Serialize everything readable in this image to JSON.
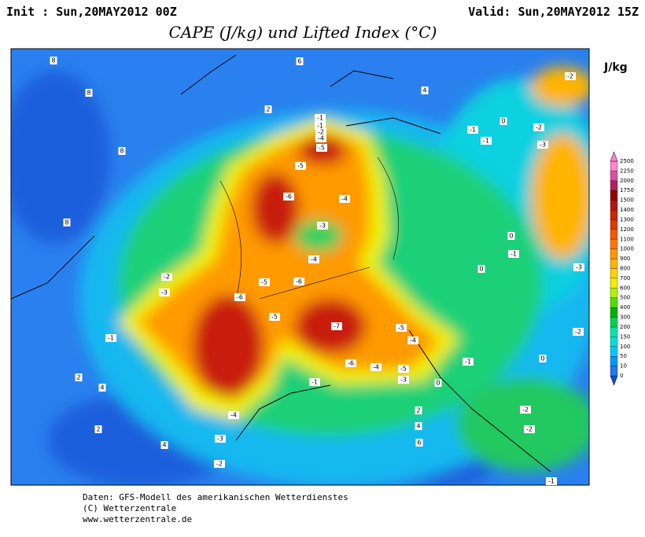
{
  "header": {
    "init": "Init : Sun,20MAY2012 00Z",
    "valid": "Valid: Sun,20MAY2012 15Z",
    "title": "CAPE (J/kg) und Lifted Index (°C)"
  },
  "colorbar": {
    "unit": "J/kg",
    "levels": [
      0,
      10,
      50,
      100,
      150,
      200,
      300,
      400,
      500,
      600,
      700,
      800,
      900,
      1000,
      1100,
      1200,
      1300,
      1400,
      1500,
      1750,
      2000,
      2250,
      2500
    ],
    "colors": [
      "#0a50dc",
      "#1e78f0",
      "#0096ff",
      "#00c8ff",
      "#00dcdc",
      "#00e6aa",
      "#00d250",
      "#00b400",
      "#50dc00",
      "#b4f000",
      "#f0f000",
      "#ffd200",
      "#ffb400",
      "#ff9600",
      "#ff7800",
      "#f05a00",
      "#dc3c00",
      "#c82800",
      "#b41414",
      "#960000",
      "#b41e5a",
      "#dc50a0",
      "#ff82d2"
    ]
  },
  "map": {
    "labels": [
      "8",
      "8",
      "8",
      "8",
      "6",
      "2",
      "4",
      "-1",
      "-1",
      "-2",
      "-4",
      "-5",
      "-5",
      "-6",
      "-4",
      "-3",
      "-4",
      "-5",
      "-6",
      "-6",
      "-5",
      "-7",
      "-4",
      "-5",
      "-6",
      "-4",
      "-5",
      "-3",
      "-2",
      "-3",
      "-1",
      "-1",
      "-4",
      "-3",
      "-2",
      "0",
      "-1",
      "-1",
      "-3",
      "-2",
      "-2",
      "-3",
      "-1",
      "-1",
      "0",
      "-2",
      "-2",
      "-1",
      "0",
      "2",
      "4",
      "2",
      "4",
      "4",
      "6",
      "2",
      "0",
      "-2",
      "0"
    ]
  },
  "footer": [
    "Daten: GFS-Modell des amerikanischen Wetterdienstes",
    "(C) Wetterzentrale",
    "www.wetterzentrale.de"
  ]
}
